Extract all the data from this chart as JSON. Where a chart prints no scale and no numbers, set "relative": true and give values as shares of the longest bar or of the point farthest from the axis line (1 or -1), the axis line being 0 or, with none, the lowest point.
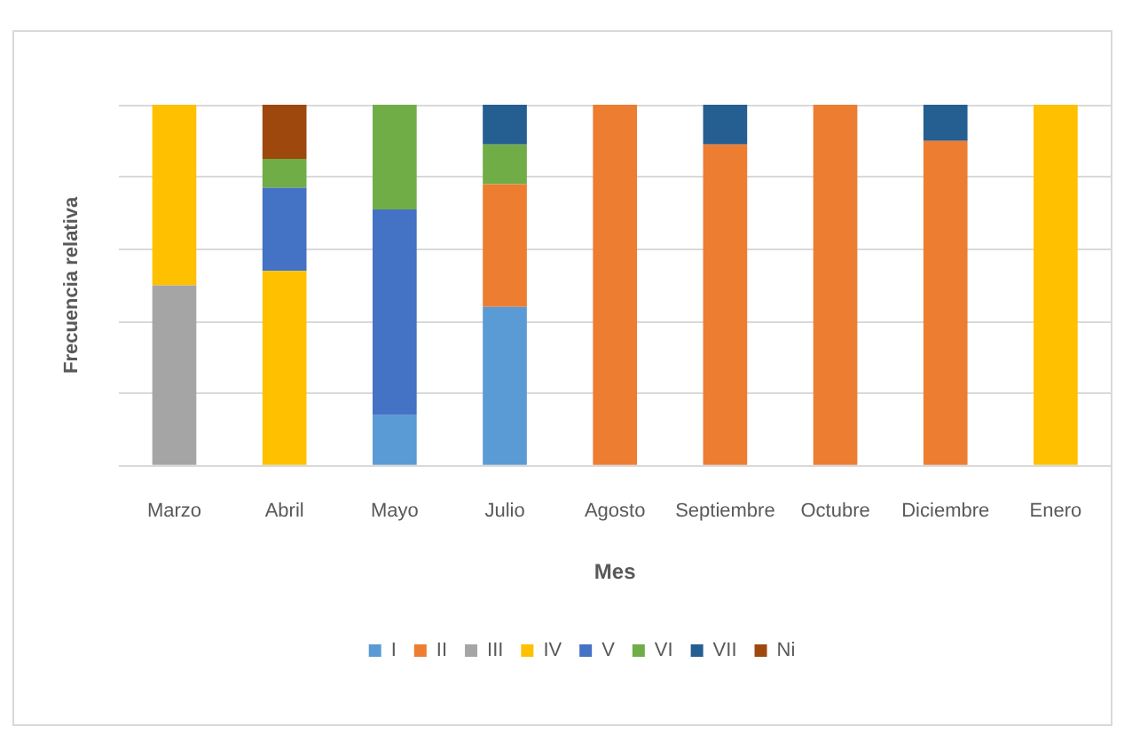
{
  "chart_data": {
    "type": "bar",
    "stacked": true,
    "relative": true,
    "xlabel": "Mes",
    "ylabel": "Frecuencia relativa",
    "categories": [
      "Marzo",
      "Abril",
      "Mayo",
      "Julio",
      "Agosto",
      "Septiembre",
      "Octubre",
      "Diciembre",
      "Enero"
    ],
    "series": [
      {
        "name": "I",
        "color": "#5b9bd5",
        "values": [
          null,
          null,
          0.14,
          0.44,
          null,
          null,
          null,
          null,
          null
        ]
      },
      {
        "name": "II",
        "color": "#ed7d31",
        "values": [
          null,
          null,
          null,
          0.34,
          1,
          0.89,
          1,
          0.9,
          null
        ]
      },
      {
        "name": "III",
        "color": "#a5a5a5",
        "values": [
          0.5,
          null,
          null,
          null,
          null,
          null,
          null,
          null,
          null
        ]
      },
      {
        "name": "IV",
        "color": "#ffc000",
        "values": [
          0.5,
          0.54,
          null,
          null,
          null,
          null,
          null,
          null,
          1
        ]
      },
      {
        "name": "V",
        "color": "#4472c4",
        "values": [
          null,
          0.23,
          0.57,
          null,
          null,
          null,
          null,
          null,
          null
        ]
      },
      {
        "name": "VI",
        "color": "#70ad47",
        "values": [
          null,
          0.08,
          0.29,
          0.11,
          null,
          null,
          null,
          null,
          null
        ]
      },
      {
        "name": "VII",
        "color": "#255e91",
        "values": [
          null,
          null,
          null,
          0.11,
          null,
          0.11,
          null,
          0.1,
          null
        ]
      },
      {
        "name": "Ni",
        "color": "#9e480e",
        "values": [
          null,
          0.15,
          null,
          null,
          null,
          null,
          null,
          null,
          null
        ]
      }
    ],
    "grid": "y",
    "legend": "bottom"
  }
}
